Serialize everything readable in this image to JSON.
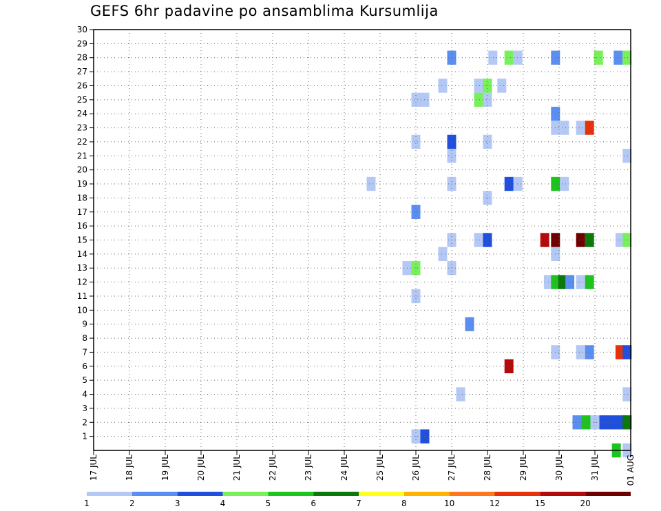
{
  "chart_data": {
    "type": "heatmap",
    "title": "GEFS 6hr padavine po ansamblima Kursumlija",
    "y_ticks": [
      "1",
      "2",
      "3",
      "4",
      "5",
      "6",
      "7",
      "8",
      "9",
      "10",
      "11",
      "12",
      "13",
      "14",
      "15",
      "16",
      "17",
      "18",
      "19",
      "20",
      "21",
      "22",
      "23",
      "24",
      "25",
      "26",
      "27",
      "28",
      "29",
      "30"
    ],
    "x_ticks": [
      "17 JUL",
      "18 JUL",
      "19 JUL",
      "20 JUL",
      "21 JUL",
      "22 JUL",
      "23 JUL",
      "24 JUL",
      "25 JUL",
      "26 JUL",
      "27 JUL",
      "28 JUL",
      "29 JUL",
      "30 JUL",
      "31 JUL",
      "01 AUG"
    ],
    "grid": true,
    "colorbar": {
      "labels": [
        "1",
        "2",
        "3",
        "4",
        "5",
        "6",
        "7",
        "8",
        "10",
        "12",
        "15",
        "20"
      ],
      "colors": [
        "#b4c8f5",
        "#5a8ef0",
        "#1f4fdc",
        "#78f05a",
        "#1ec41e",
        "#0a780a",
        "#ffff1e",
        "#ffb400",
        "#ff781e",
        "#e6320a",
        "#b40a0a",
        "#6e0000"
      ]
    },
    "cells": [
      {
        "t": 26.0,
        "member": 1,
        "c": 1
      },
      {
        "t": 26.25,
        "member": 1,
        "c": 3
      },
      {
        "t": 30.5,
        "member": 2,
        "c": 2
      },
      {
        "t": 30.75,
        "member": 2,
        "c": 5
      },
      {
        "t": 31.0,
        "member": 2,
        "c": 1
      },
      {
        "t": 31.25,
        "member": 2,
        "c": 3
      },
      {
        "t": 31.5,
        "member": 2,
        "c": 3
      },
      {
        "t": 31.75,
        "member": 2,
        "c": 3
      },
      {
        "t": 31.9,
        "member": 2,
        "c": 6
      },
      {
        "t": 27.25,
        "member": 4,
        "c": 1
      },
      {
        "t": 31.9,
        "member": 4,
        "c": 1
      },
      {
        "t": 28.6,
        "member": 6,
        "c": 11
      },
      {
        "t": 29.9,
        "member": 7,
        "c": 1
      },
      {
        "t": 30.6,
        "member": 7,
        "c": 1
      },
      {
        "t": 30.85,
        "member": 7,
        "c": 2
      },
      {
        "t": 31.7,
        "member": 7,
        "c": 10
      },
      {
        "t": 31.9,
        "member": 7,
        "c": 3
      },
      {
        "t": 27.5,
        "member": 9,
        "c": 2
      },
      {
        "t": 26.0,
        "member": 11,
        "c": 1
      },
      {
        "t": 29.7,
        "member": 12,
        "c": 1
      },
      {
        "t": 29.9,
        "member": 12,
        "c": 5
      },
      {
        "t": 30.1,
        "member": 12,
        "c": 6
      },
      {
        "t": 30.3,
        "member": 12,
        "c": 2
      },
      {
        "t": 30.6,
        "member": 12,
        "c": 1
      },
      {
        "t": 30.85,
        "member": 12,
        "c": 5
      },
      {
        "t": 25.75,
        "member": 13,
        "c": 1
      },
      {
        "t": 26.0,
        "member": 13,
        "c": 4
      },
      {
        "t": 27.0,
        "member": 13,
        "c": 1
      },
      {
        "t": 26.75,
        "member": 14,
        "c": 1
      },
      {
        "t": 29.9,
        "member": 14,
        "c": 1
      },
      {
        "t": 27.0,
        "member": 15,
        "c": 1
      },
      {
        "t": 27.75,
        "member": 15,
        "c": 1
      },
      {
        "t": 28.0,
        "member": 15,
        "c": 3
      },
      {
        "t": 29.6,
        "member": 15,
        "c": 11
      },
      {
        "t": 29.9,
        "member": 15,
        "c": 12
      },
      {
        "t": 30.6,
        "member": 15,
        "c": 12
      },
      {
        "t": 30.85,
        "member": 15,
        "c": 6
      },
      {
        "t": 31.7,
        "member": 15,
        "c": 1
      },
      {
        "t": 31.9,
        "member": 15,
        "c": 4
      },
      {
        "t": 26.0,
        "member": 17,
        "c": 2
      },
      {
        "t": 28.0,
        "member": 18,
        "c": 1
      },
      {
        "t": 24.75,
        "member": 19,
        "c": 1
      },
      {
        "t": 27.0,
        "member": 19,
        "c": 1
      },
      {
        "t": 28.6,
        "member": 19,
        "c": 3
      },
      {
        "t": 28.85,
        "member": 19,
        "c": 1
      },
      {
        "t": 29.9,
        "member": 19,
        "c": 5
      },
      {
        "t": 30.15,
        "member": 19,
        "c": 1
      },
      {
        "t": 27.0,
        "member": 21,
        "c": 1
      },
      {
        "t": 31.9,
        "member": 21,
        "c": 1
      },
      {
        "t": 26.0,
        "member": 22,
        "c": 1
      },
      {
        "t": 27.0,
        "member": 22,
        "c": 3
      },
      {
        "t": 28.0,
        "member": 22,
        "c": 1
      },
      {
        "t": 29.9,
        "member": 23,
        "c": 1
      },
      {
        "t": 30.15,
        "member": 23,
        "c": 1
      },
      {
        "t": 30.6,
        "member": 23,
        "c": 1
      },
      {
        "t": 30.85,
        "member": 23,
        "c": 10
      },
      {
        "t": 29.9,
        "member": 24,
        "c": 2
      },
      {
        "t": 26.0,
        "member": 25,
        "c": 1
      },
      {
        "t": 26.25,
        "member": 25,
        "c": 1
      },
      {
        "t": 27.75,
        "member": 25,
        "c": 4
      },
      {
        "t": 28.0,
        "member": 25,
        "c": 1
      },
      {
        "t": 26.75,
        "member": 26,
        "c": 1
      },
      {
        "t": 27.75,
        "member": 26,
        "c": 1
      },
      {
        "t": 28.0,
        "member": 26,
        "c": 4
      },
      {
        "t": 28.4,
        "member": 26,
        "c": 1
      },
      {
        "t": 27.0,
        "member": 28,
        "c": 2
      },
      {
        "t": 28.15,
        "member": 28,
        "c": 1
      },
      {
        "t": 28.6,
        "member": 28,
        "c": 4
      },
      {
        "t": 28.85,
        "member": 28,
        "c": 1
      },
      {
        "t": 29.9,
        "member": 28,
        "c": 2
      },
      {
        "t": 31.1,
        "member": 28,
        "c": 4
      },
      {
        "t": 31.65,
        "member": 28,
        "c": 2
      },
      {
        "t": 31.9,
        "member": 28,
        "c": 4
      },
      {
        "t": 31.6,
        "member": 0,
        "c": 5
      },
      {
        "t": 31.9,
        "member": 0,
        "c": 1
      }
    ]
  }
}
